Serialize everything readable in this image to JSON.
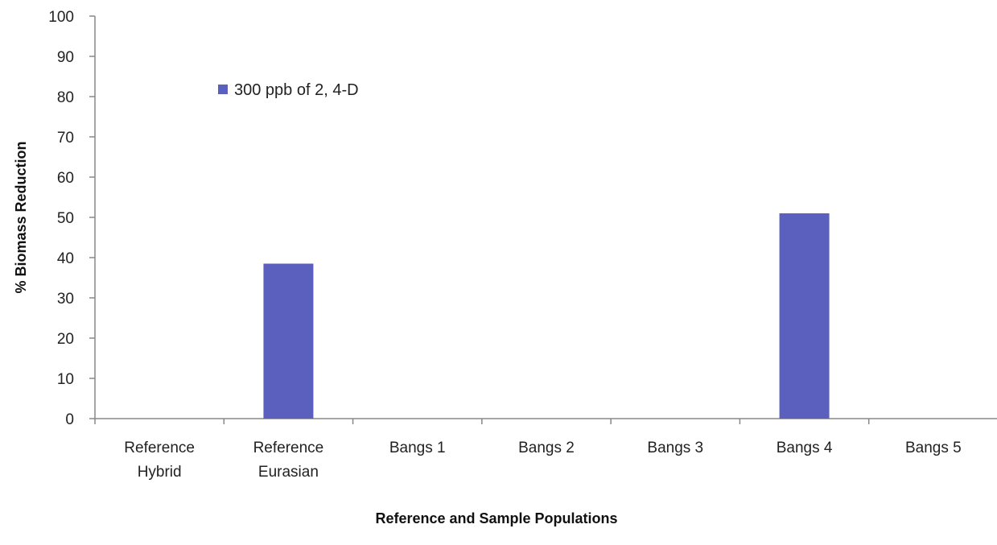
{
  "chart_data": {
    "type": "bar",
    "xlabel": "Reference and Sample Populations",
    "ylabel": "% Biomass Reduction",
    "ylim": [
      0,
      100
    ],
    "yticks": [
      0,
      10,
      20,
      30,
      40,
      50,
      60,
      70,
      80,
      90,
      100
    ],
    "grid": false,
    "legend_position": "top-left",
    "categories": [
      [
        "Reference",
        "Hybrid"
      ],
      [
        "Reference",
        "Eurasian"
      ],
      [
        "Bangs 1"
      ],
      [
        "Bangs 2"
      ],
      [
        "Bangs 3"
      ],
      [
        "Bangs 4"
      ],
      [
        "Bangs 5"
      ]
    ],
    "series": [
      {
        "name": "300 ppb of 2, 4-D",
        "color": "#5b5fbd",
        "values": [
          0,
          38.5,
          0,
          0,
          0,
          51,
          0
        ]
      }
    ]
  }
}
